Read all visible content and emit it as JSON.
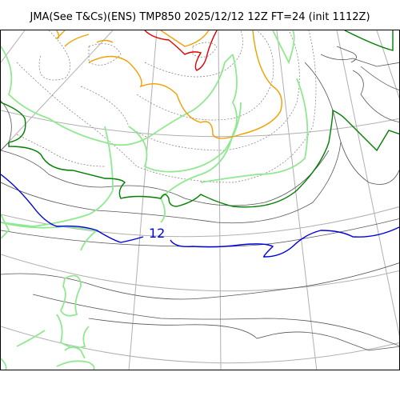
{
  "title": "JMA(See T&Cs)(ENS) TMP850 2025/12/12 12Z FT=24 (init 1112Z)",
  "map": {
    "contour_labels": [
      {
        "text": "12",
        "color": "#0000e0"
      }
    ],
    "colors": {
      "grid": "#b0b0b0",
      "coastline": "#555555",
      "ensemble_member": "#90e890",
      "warm_isotherm": "#f0a000",
      "hot_isotherm": "#e00000",
      "mid_isotherm": "#008000",
      "isotherm_12": "#0000e0"
    }
  }
}
